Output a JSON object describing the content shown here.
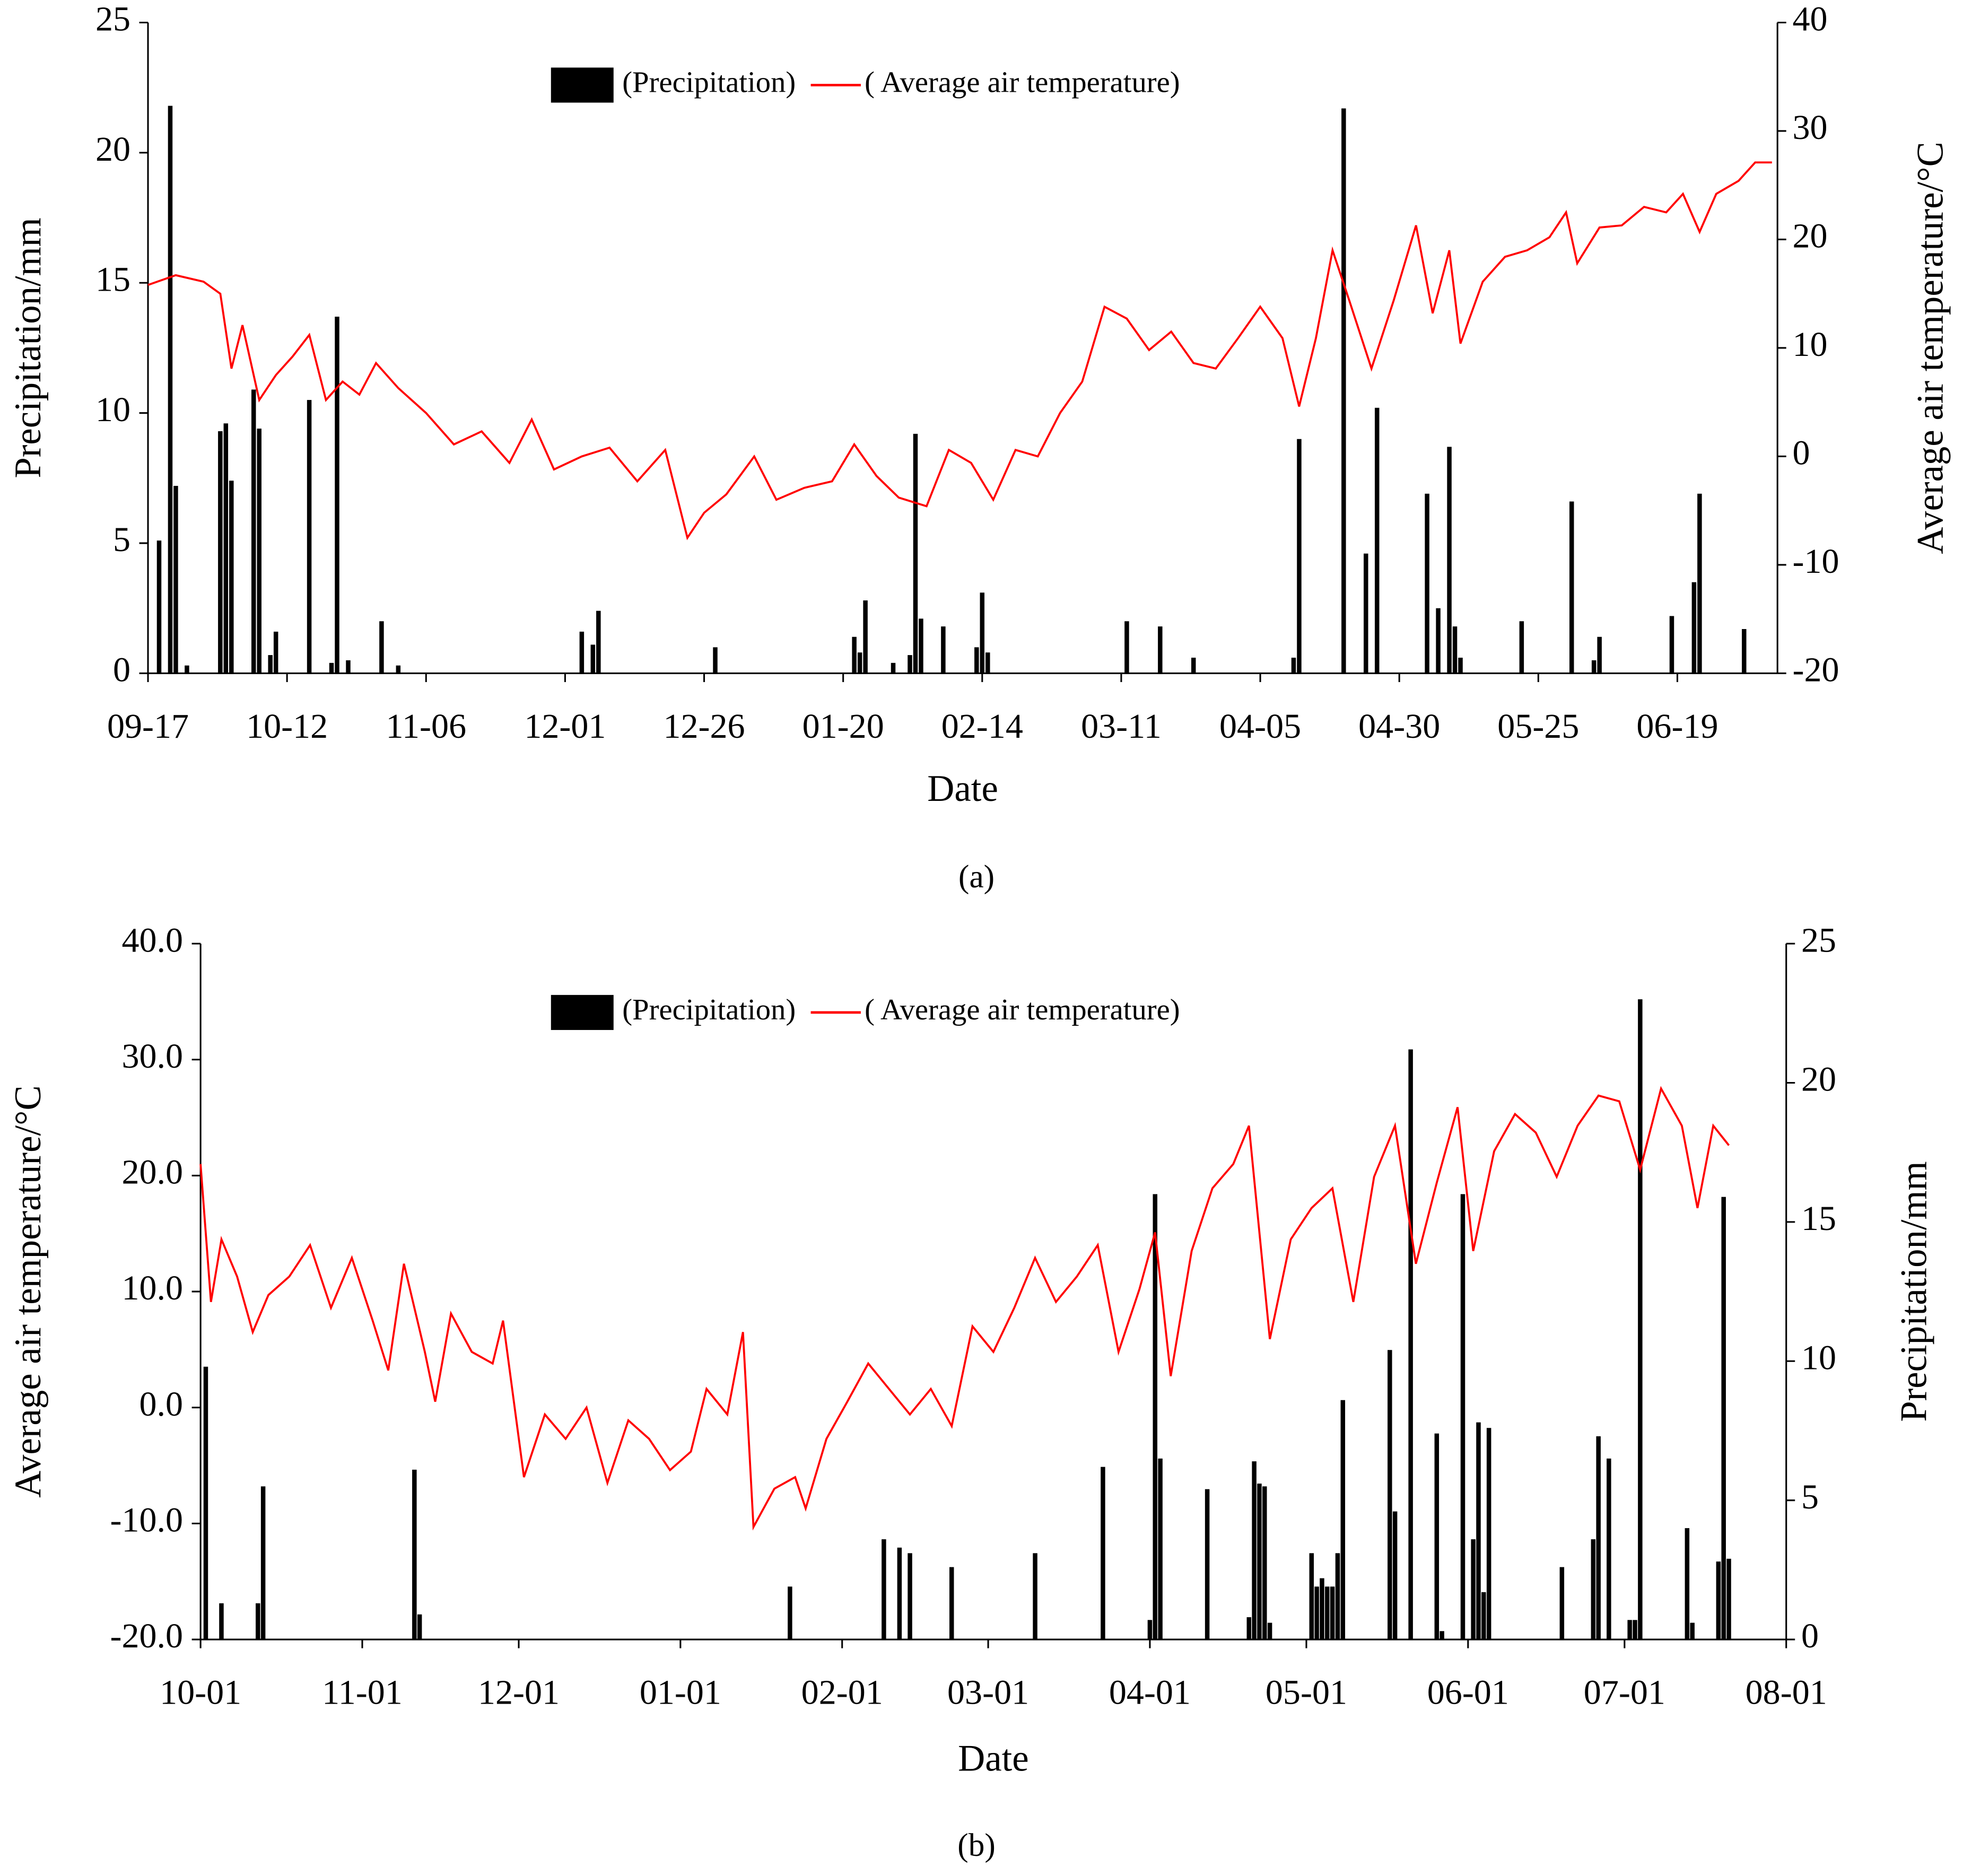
{
  "chart_data": [
    {
      "type": "combo",
      "caption": "(a)",
      "x_label": "Date",
      "y_label": "Precipitation/mm",
      "y2_label": "Average air temperature/°C",
      "xlim": [
        "09-17",
        "07-07"
      ],
      "xticks": [
        "09-17",
        "10-12",
        "11-06",
        "12-01",
        "12-26",
        "01-20",
        "02-14",
        "03-11",
        "04-05",
        "04-30",
        "05-25",
        "06-19"
      ],
      "ylim": [
        0,
        25
      ],
      "yticks": [
        0,
        5,
        10,
        15,
        20,
        25
      ],
      "y2lim": [
        -20,
        40
      ],
      "y2ticks": [
        -20,
        -10,
        0,
        10,
        20,
        30,
        40
      ],
      "series": [
        {
          "name": "(Precipitation)",
          "type": "bar",
          "color": "#000000",
          "x": [
            "09-19",
            "09-21",
            "09-22",
            "09-24",
            "09-30",
            "10-01",
            "10-02",
            "10-06",
            "10-07",
            "10-09",
            "10-10",
            "10-16",
            "10-20",
            "10-21",
            "10-23",
            "10-29",
            "11-01",
            "12-04",
            "12-06",
            "12-07",
            "12-28",
            "01-22",
            "01-23",
            "01-24",
            "01-29",
            "02-01",
            "02-02",
            "02-03",
            "02-07",
            "02-13",
            "02-14",
            "02-15",
            "03-12",
            "03-18",
            "03-24",
            "04-11",
            "04-12",
            "04-20",
            "04-24",
            "04-26",
            "05-05",
            "05-07",
            "05-09",
            "05-10",
            "05-11",
            "05-22",
            "05-31",
            "06-04",
            "06-05",
            "06-18",
            "06-22",
            "06-23",
            "07-01"
          ],
          "values": [
            5.1,
            21.8,
            7.2,
            0.3,
            9.3,
            9.6,
            7.4,
            10.9,
            9.4,
            0.7,
            1.6,
            10.5,
            0.4,
            13.7,
            0.5,
            2.0,
            0.3,
            1.6,
            1.1,
            2.4,
            1.0,
            1.4,
            0.8,
            2.8,
            0.4,
            0.7,
            9.2,
            2.1,
            1.8,
            1.0,
            3.1,
            0.8,
            2.0,
            1.8,
            0.6,
            0.6,
            9.0,
            21.7,
            4.6,
            10.2,
            6.9,
            2.5,
            8.7,
            1.8,
            0.6,
            2.0,
            6.6,
            0.5,
            1.4,
            2.2,
            3.5,
            6.9,
            1.7
          ]
        },
        {
          "name": "( Average air temperature)",
          "type": "line",
          "color": "#ff0000",
          "axis": "y2",
          "x": [
            "09-17",
            "09-22",
            "09-27",
            "09-30",
            "10-02",
            "10-04",
            "10-07",
            "10-10",
            "10-13",
            "10-16",
            "10-19",
            "10-22",
            "10-25",
            "10-28",
            "11-01",
            "11-06",
            "11-11",
            "11-16",
            "11-21",
            "11-25",
            "11-29",
            "12-04",
            "12-09",
            "12-14",
            "12-19",
            "12-23",
            "12-26",
            "12-30",
            "01-04",
            "01-08",
            "01-13",
            "01-18",
            "01-22",
            "01-26",
            "01-30",
            "02-04",
            "02-08",
            "02-12",
            "02-16",
            "02-20",
            "02-24",
            "02-28",
            "03-04",
            "03-08",
            "03-12",
            "03-16",
            "03-20",
            "03-24",
            "03-28",
            "04-01",
            "04-05",
            "04-09",
            "04-12",
            "04-15",
            "04-18",
            "04-21",
            "04-25",
            "04-29",
            "05-03",
            "05-06",
            "05-09",
            "05-11",
            "05-15",
            "05-19",
            "05-23",
            "05-27",
            "05-30",
            "06-01",
            "06-05",
            "06-09",
            "06-13",
            "06-17",
            "06-20",
            "06-23",
            "06-26",
            "06-30",
            "07-03",
            "07-06"
          ],
          "values": [
            15.8,
            16.7,
            16.1,
            15.0,
            8.1,
            12.1,
            5.2,
            7.5,
            9.2,
            11.2,
            5.2,
            6.9,
            5.7,
            8.6,
            6.3,
            4.0,
            1.1,
            2.3,
            -0.6,
            3.4,
            -1.2,
            0.0,
            0.8,
            -2.3,
            0.6,
            -7.5,
            -5.2,
            -3.5,
            0.0,
            -4.0,
            -2.9,
            -2.3,
            1.1,
            -1.8,
            -3.8,
            -4.6,
            0.6,
            -0.6,
            -4.0,
            0.6,
            0.0,
            4.0,
            6.9,
            13.8,
            12.7,
            9.8,
            11.5,
            8.6,
            8.1,
            10.9,
            13.8,
            10.9,
            4.6,
            10.9,
            19.0,
            14.4,
            8.1,
            14.4,
            21.3,
            13.2,
            19.0,
            10.4,
            16.1,
            18.4,
            19.0,
            20.2,
            22.5,
            17.8,
            21.1,
            21.3,
            23.0,
            22.5,
            24.2,
            20.7,
            24.2,
            25.4,
            27.1,
            27.1
          ]
        }
      ]
    },
    {
      "type": "combo",
      "caption": "(b)",
      "x_label": "Date",
      "y_label": "Average air temperature/°C",
      "y2_label": "Precipitation/mm",
      "xlim": [
        "10-01",
        "08-01"
      ],
      "xticks": [
        "10-01",
        "11-01",
        "12-01",
        "01-01",
        "02-01",
        "03-01",
        "04-01",
        "05-01",
        "06-01",
        "07-01",
        "08-01"
      ],
      "ylim": [
        -20,
        40
      ],
      "yticks": [
        {
          "value": -20,
          "label": "-20.0"
        },
        {
          "value": -10,
          "label": "-10.0"
        },
        {
          "value": 0,
          "label": "0.0"
        },
        {
          "value": 10,
          "label": "10.0"
        },
        {
          "value": 20,
          "label": "20.0"
        },
        {
          "value": 30,
          "label": "30.0"
        },
        {
          "value": 40,
          "label": "40.0"
        }
      ],
      "y2lim": [
        0,
        25
      ],
      "y2ticks": [
        0,
        5,
        10,
        15,
        20,
        25
      ],
      "series": [
        {
          "name": "(Precipitation)",
          "type": "bar",
          "color": "#000000",
          "axis": "y2",
          "x": [
            "10-02",
            "10-05",
            "10-12",
            "10-13",
            "11-11",
            "11-12",
            "01-22",
            "02-09",
            "02-12",
            "02-14",
            "02-22",
            "03-10",
            "03-23",
            "04-01",
            "04-02",
            "04-03",
            "04-12",
            "04-20",
            "04-21",
            "04-22",
            "04-23",
            "04-24",
            "05-02",
            "05-03",
            "05-04",
            "05-05",
            "05-06",
            "05-07",
            "05-08",
            "05-17",
            "05-18",
            "05-21",
            "05-26",
            "05-27",
            "05-31",
            "06-02",
            "06-03",
            "06-04",
            "06-05",
            "06-19",
            "06-25",
            "06-26",
            "06-28",
            "07-02",
            "07-03",
            "07-04",
            "07-13",
            "07-14",
            "07-19",
            "07-20",
            "07-21"
          ],
          "values": [
            9.8,
            1.3,
            1.3,
            5.5,
            6.1,
            0.9,
            1.9,
            3.6,
            3.3,
            3.1,
            2.6,
            3.1,
            6.2,
            0.7,
            16.0,
            6.5,
            5.4,
            0.8,
            6.4,
            5.6,
            5.5,
            0.6,
            3.1,
            1.9,
            2.2,
            1.9,
            1.9,
            3.1,
            8.6,
            10.4,
            4.6,
            21.2,
            7.4,
            0.3,
            16.0,
            3.6,
            7.8,
            1.7,
            7.6,
            2.6,
            3.6,
            7.3,
            6.5,
            0.7,
            0.7,
            23.0,
            4.0,
            0.6,
            2.8,
            15.9,
            2.9
          ]
        },
        {
          "name": "( Average air temperature)",
          "type": "line",
          "color": "#ff0000",
          "x": [
            "10-01",
            "10-03",
            "10-05",
            "10-08",
            "10-11",
            "10-14",
            "10-18",
            "10-22",
            "10-26",
            "10-30",
            "11-03",
            "11-06",
            "11-09",
            "11-13",
            "11-15",
            "11-18",
            "11-22",
            "11-26",
            "11-28",
            "12-02",
            "12-06",
            "12-10",
            "12-14",
            "12-18",
            "12-22",
            "12-26",
            "12-30",
            "01-03",
            "01-06",
            "01-10",
            "01-13",
            "01-15",
            "01-19",
            "01-23",
            "01-25",
            "01-29",
            "02-02",
            "02-06",
            "02-10",
            "02-14",
            "02-18",
            "02-22",
            "02-26",
            "03-02",
            "03-06",
            "03-10",
            "03-14",
            "03-18",
            "03-22",
            "03-26",
            "03-30",
            "04-02",
            "04-05",
            "04-09",
            "04-13",
            "04-17",
            "04-20",
            "04-24",
            "04-28",
            "05-02",
            "05-06",
            "05-10",
            "05-14",
            "05-18",
            "05-22",
            "05-26",
            "05-30",
            "06-02",
            "06-06",
            "06-10",
            "06-14",
            "06-18",
            "06-22",
            "06-26",
            "06-30",
            "07-04",
            "07-08",
            "07-12",
            "07-15",
            "07-18",
            "07-21"
          ],
          "values": [
            21.0,
            9.1,
            14.5,
            11.3,
            6.5,
            9.7,
            11.3,
            14.0,
            8.6,
            12.9,
            7.5,
            3.2,
            12.4,
            4.8,
            0.5,
            8.1,
            4.8,
            3.8,
            7.5,
            -6.0,
            -0.6,
            -2.7,
            0.0,
            -6.5,
            -1.1,
            -2.7,
            -5.4,
            -3.8,
            1.6,
            -0.6,
            6.5,
            -10.3,
            -7.0,
            -6.0,
            -8.7,
            -2.7,
            0.5,
            3.8,
            1.6,
            -0.6,
            1.6,
            -1.6,
            7.0,
            4.8,
            8.6,
            12.9,
            9.1,
            11.3,
            14.0,
            4.8,
            10.2,
            15.1,
            2.7,
            13.5,
            18.9,
            21.0,
            24.3,
            5.9,
            14.5,
            17.2,
            18.9,
            9.1,
            19.9,
            24.3,
            12.4,
            19.4,
            25.9,
            13.5,
            22.1,
            25.3,
            23.7,
            19.9,
            24.3,
            26.9,
            26.4,
            20.5,
            27.5,
            24.3,
            17.2,
            24.3,
            22.6
          ]
        }
      ]
    }
  ]
}
